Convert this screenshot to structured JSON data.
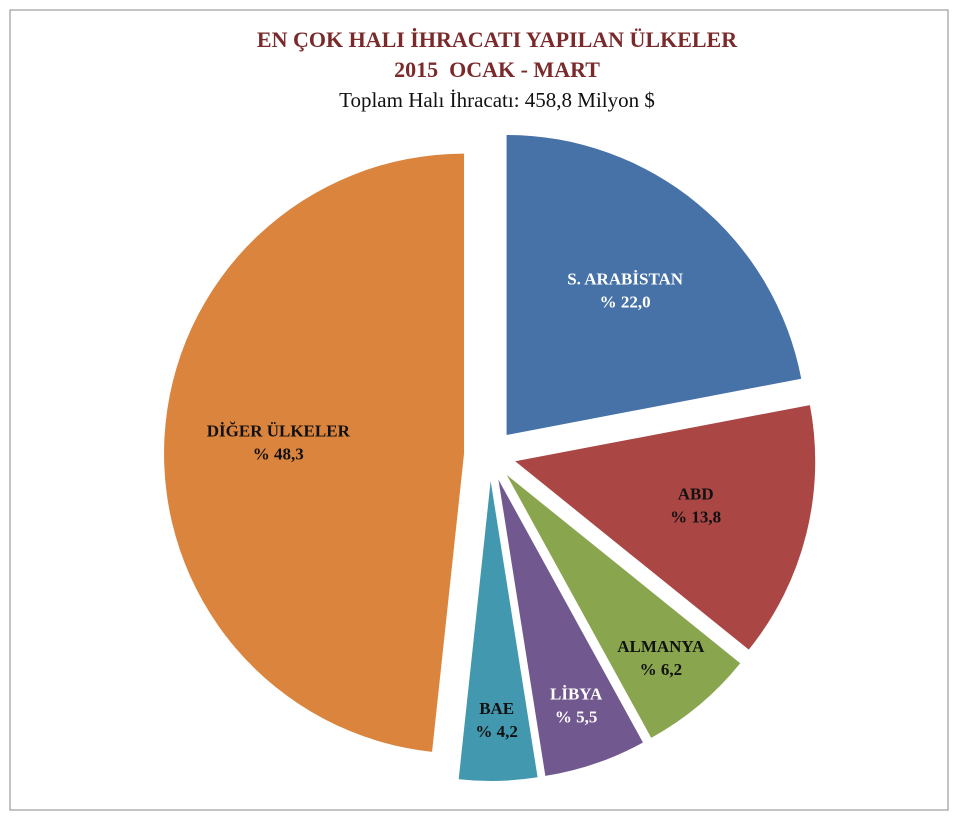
{
  "chart_data": {
    "type": "pie",
    "title": "EN ÇOK HALI İHRACATI YAPILAN ÜLKELER",
    "subtitle": "2015  OCAK - MART",
    "note": "Toplam Halı İhracatı: 458,8 Milyon $",
    "categories": [
      "S. ARABİSTAN",
      "ABD",
      "ALMANYA",
      "LİBYA",
      "BAE",
      "DİĞER ÜLKELER"
    ],
    "values": [
      22.0,
      13.8,
      6.2,
      5.5,
      4.2,
      48.3
    ],
    "value_labels": [
      "% 22,0",
      "% 13,8",
      "% 6,2",
      "% 5,5",
      "% 4,2",
      "% 48,3"
    ],
    "colors": [
      "#4672a7",
      "#aa4644",
      "#89a64e",
      "#71588f",
      "#4298ae",
      "#db843d"
    ],
    "label_colors": [
      "#ffffff",
      "#111111",
      "#111111",
      "#ffffff",
      "#111111",
      "#111111"
    ]
  }
}
